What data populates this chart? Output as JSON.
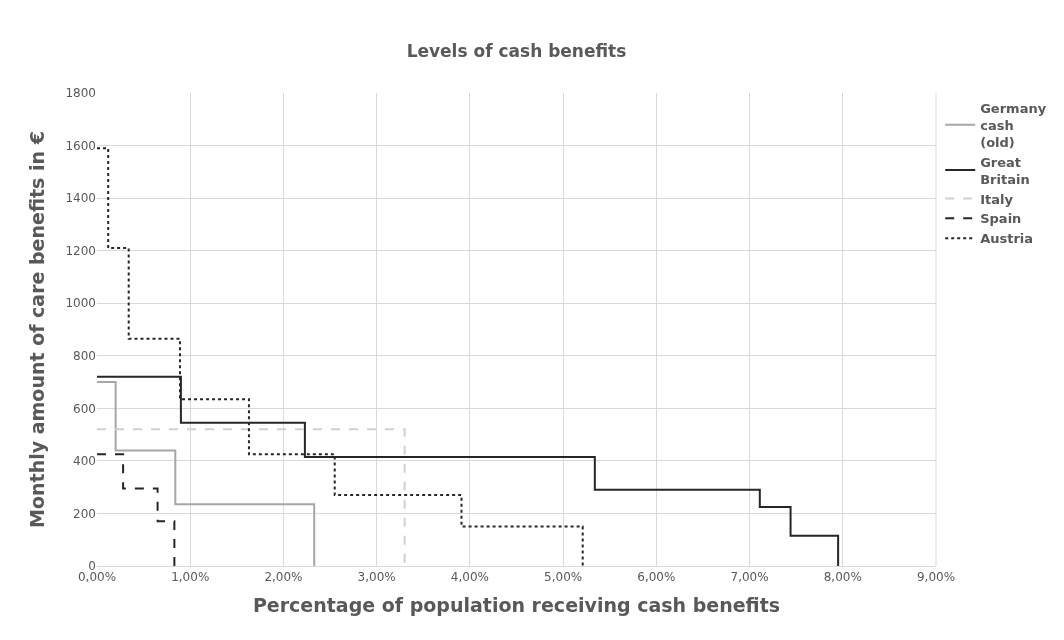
{
  "chart_data": {
    "type": "step",
    "title": "Levels of cash benefits",
    "xlabel": "Percentage of population receiving cash benefits",
    "ylabel": "Monthly amount of care benefits in €",
    "xlim": [
      0,
      9
    ],
    "ylim": [
      0,
      1800
    ],
    "xticks": [
      {
        "value": 0,
        "label": "0,00%"
      },
      {
        "value": 1,
        "label": "1,00%"
      },
      {
        "value": 2,
        "label": "2,00%"
      },
      {
        "value": 3,
        "label": "3,00%"
      },
      {
        "value": 4,
        "label": "4,00%"
      },
      {
        "value": 5,
        "label": "5,00%"
      },
      {
        "value": 6,
        "label": "6,00%"
      },
      {
        "value": 7,
        "label": "7,00%"
      },
      {
        "value": 8,
        "label": "8,00%"
      },
      {
        "value": 9,
        "label": "9,00%"
      }
    ],
    "yticks": [
      0,
      200,
      400,
      600,
      800,
      1000,
      1200,
      1400,
      1600,
      1800
    ],
    "grid": true,
    "legend": "right",
    "series": [
      {
        "name": "Germany cash (old)",
        "color": "#a6a6a6",
        "line_style": "solid",
        "x": [
          0,
          0.2,
          0.84,
          2.33
        ],
        "values": [
          700,
          440,
          235,
          0
        ]
      },
      {
        "name": "Great Britain",
        "color": "#262626",
        "line_style": "solid",
        "x": [
          0,
          0.9,
          2.23,
          5.34,
          7.11,
          7.44,
          7.95
        ],
        "values": [
          720,
          545,
          415,
          290,
          225,
          115,
          0
        ]
      },
      {
        "name": "Italy",
        "color": "#d0d0d0",
        "line_style": "dashed",
        "x": [
          0,
          3.3
        ],
        "values": [
          520,
          0
        ]
      },
      {
        "name": "Spain",
        "color": "#262626",
        "line_style": "dashed",
        "x": [
          0,
          0.28,
          0.65,
          0.83
        ],
        "values": [
          425,
          295,
          170,
          0
        ]
      },
      {
        "name": "Austria",
        "color": "#262626",
        "line_style": "dotted",
        "x": [
          0,
          0.12,
          0.34,
          0.89,
          1.63,
          2.55,
          3.91,
          5.21
        ],
        "values": [
          1590,
          1210,
          865,
          635,
          425,
          270,
          150,
          0
        ]
      }
    ]
  }
}
